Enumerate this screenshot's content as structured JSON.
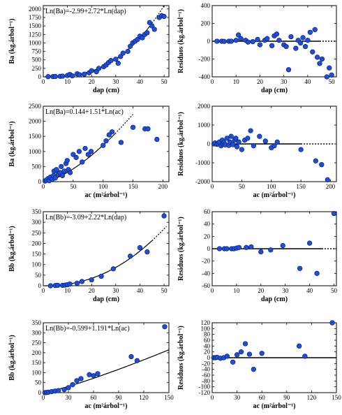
{
  "chart_data": [
    {
      "id": "p1",
      "type": "scatter",
      "equation": "Ln(Ba)=-2.99+2.72*Ln(dap)",
      "ylabel": "Ba (kg.árbol⁻¹)",
      "xlabel": "dap (cm)",
      "xlim": [
        0,
        52
      ],
      "ylim": [
        0,
        2100
      ],
      "xticks": [
        0,
        10,
        20,
        30,
        40,
        50
      ],
      "yticks": [
        0,
        250,
        500,
        750,
        1000,
        1250,
        1500,
        1750,
        2000
      ],
      "points": [
        [
          2,
          5
        ],
        [
          4,
          8
        ],
        [
          5,
          10
        ],
        [
          7,
          15
        ],
        [
          8,
          20
        ],
        [
          10,
          40
        ],
        [
          11,
          70
        ],
        [
          12,
          30
        ],
        [
          14,
          90
        ],
        [
          15,
          60
        ],
        [
          17,
          80
        ],
        [
          19,
          120
        ],
        [
          20,
          180
        ],
        [
          22,
          150
        ],
        [
          23,
          250
        ],
        [
          25,
          300
        ],
        [
          26,
          350
        ],
        [
          27,
          420
        ],
        [
          28,
          480
        ],
        [
          30,
          520
        ],
        [
          31,
          400
        ],
        [
          32,
          600
        ],
        [
          33,
          700
        ],
        [
          35,
          750
        ],
        [
          36,
          900
        ],
        [
          37,
          1000
        ],
        [
          38,
          1050
        ],
        [
          39,
          1100
        ],
        [
          40,
          1200
        ],
        [
          41,
          1150
        ],
        [
          42,
          1250
        ],
        [
          43,
          1300
        ],
        [
          44,
          1600
        ],
        [
          45,
          1500
        ],
        [
          46,
          1400
        ],
        [
          48,
          1750
        ],
        [
          49,
          1800
        ],
        [
          50,
          1780
        ]
      ],
      "curve": {
        "a": -2.99,
        "b": 2.72,
        "solid_max": 45,
        "dotted_max": 52
      }
    },
    {
      "id": "p2",
      "type": "scatter",
      "ylabel": "Residuos (kg.árbol⁻¹)",
      "xlabel": "dap (cm)",
      "xlim": [
        0,
        52
      ],
      "ylim": [
        -400,
        400
      ],
      "xticks": [
        0,
        10,
        20,
        30,
        40,
        50
      ],
      "yticks": [
        -400,
        -200,
        0,
        200,
        400
      ],
      "points": [
        [
          2,
          0
        ],
        [
          4,
          0
        ],
        [
          5,
          -2
        ],
        [
          7,
          0
        ],
        [
          8,
          0
        ],
        [
          10,
          10
        ],
        [
          11,
          70
        ],
        [
          12,
          30
        ],
        [
          14,
          10
        ],
        [
          15,
          -10
        ],
        [
          17,
          -5
        ],
        [
          19,
          20
        ],
        [
          20,
          -40
        ],
        [
          22,
          10
        ],
        [
          23,
          30
        ],
        [
          25,
          -50
        ],
        [
          26,
          60
        ],
        [
          27,
          80
        ],
        [
          28,
          10
        ],
        [
          30,
          -40
        ],
        [
          31,
          -60
        ],
        [
          32,
          -320
        ],
        [
          33,
          50
        ],
        [
          35,
          -80
        ],
        [
          36,
          10
        ],
        [
          37,
          -20
        ],
        [
          38,
          40
        ],
        [
          39,
          -60
        ],
        [
          40,
          10
        ],
        [
          41,
          100
        ],
        [
          42,
          -120
        ],
        [
          43,
          130
        ],
        [
          44,
          -180
        ],
        [
          45,
          -250
        ],
        [
          46,
          -200
        ],
        [
          48,
          -400
        ],
        [
          49,
          -300
        ],
        [
          50,
          -380
        ]
      ],
      "zeroline": {
        "solid_max": 45,
        "dotted_max": 52
      }
    },
    {
      "id": "p3",
      "type": "scatter",
      "equation": "Ln(Ba)=0.144+1.51*Ln(ac)",
      "ylabel": "Ba (kg.árbol⁻¹)",
      "xlabel": "ac (m²árbol⁻¹)",
      "xlim": [
        0,
        210
      ],
      "ylim": [
        0,
        2500
      ],
      "xticks": [
        0,
        50,
        100,
        150,
        200
      ],
      "yticks": [
        0,
        500,
        1000,
        1500,
        2000,
        2500
      ],
      "points": [
        [
          3,
          20
        ],
        [
          5,
          50
        ],
        [
          8,
          100
        ],
        [
          10,
          30
        ],
        [
          12,
          150
        ],
        [
          15,
          80
        ],
        [
          17,
          200
        ],
        [
          18,
          350
        ],
        [
          20,
          120
        ],
        [
          22,
          400
        ],
        [
          25,
          250
        ],
        [
          28,
          300
        ],
        [
          30,
          500
        ],
        [
          32,
          200
        ],
        [
          35,
          350
        ],
        [
          38,
          600
        ],
        [
          40,
          700
        ],
        [
          42,
          400
        ],
        [
          45,
          300
        ],
        [
          50,
          900
        ],
        [
          55,
          800
        ],
        [
          60,
          1000
        ],
        [
          65,
          650
        ],
        [
          70,
          1100
        ],
        [
          75,
          900
        ],
        [
          80,
          1000
        ],
        [
          100,
          1200
        ],
        [
          105,
          1350
        ],
        [
          110,
          1550
        ],
        [
          115,
          1650
        ],
        [
          130,
          1300
        ],
        [
          150,
          1800
        ],
        [
          170,
          1750
        ],
        [
          175,
          1750
        ],
        [
          190,
          1400
        ]
      ],
      "curve": {
        "a": 0.144,
        "b": 1.51,
        "solid_max": 120,
        "dotted_max": 150
      }
    },
    {
      "id": "p4",
      "type": "scatter",
      "ylabel": "Residuos (kg.árbol⁻¹)",
      "xlabel": "ac (m²árbol⁻¹)",
      "xlim": [
        0,
        210
      ],
      "ylim": [
        -2000,
        2000
      ],
      "xticks": [
        0,
        50,
        100,
        150,
        200
      ],
      "yticks": [
        -2000,
        -1000,
        0,
        1000,
        2000
      ],
      "points": [
        [
          3,
          0
        ],
        [
          5,
          50
        ],
        [
          8,
          -20
        ],
        [
          10,
          0
        ],
        [
          12,
          100
        ],
        [
          15,
          -100
        ],
        [
          17,
          200
        ],
        [
          18,
          0
        ],
        [
          20,
          80
        ],
        [
          22,
          -50
        ],
        [
          25,
          300
        ],
        [
          28,
          -80
        ],
        [
          30,
          100
        ],
        [
          32,
          400
        ],
        [
          35,
          -40
        ],
        [
          38,
          200
        ],
        [
          40,
          300
        ],
        [
          42,
          -150
        ],
        [
          45,
          100
        ],
        [
          50,
          -300
        ],
        [
          55,
          200
        ],
        [
          60,
          300
        ],
        [
          65,
          700
        ],
        [
          70,
          -100
        ],
        [
          80,
          400
        ],
        [
          90,
          150
        ],
        [
          100,
          -200
        ],
        [
          105,
          -100
        ],
        [
          110,
          100
        ],
        [
          150,
          -300
        ],
        [
          175,
          -900
        ],
        [
          185,
          -1100
        ],
        [
          195,
          -1900
        ]
      ],
      "zeroline": {
        "solid_max": 150,
        "dotted_max": 205
      }
    },
    {
      "id": "p5",
      "type": "scatter",
      "equation": "Ln(Bb)=-3.09+2.22*Ln(dap)",
      "ylabel": "Bb (kg.árbol⁻¹)",
      "xlabel": "dap (cm)",
      "xlim": [
        0,
        52
      ],
      "ylim": [
        0,
        350
      ],
      "xticks": [
        0,
        10,
        20,
        30,
        40,
        50
      ],
      "yticks": [
        0,
        50,
        100,
        150,
        200,
        250,
        300,
        350
      ],
      "points": [
        [
          3,
          0
        ],
        [
          5,
          1
        ],
        [
          6,
          2
        ],
        [
          8,
          2
        ],
        [
          9,
          3
        ],
        [
          10,
          5
        ],
        [
          11,
          8
        ],
        [
          14,
          12
        ],
        [
          16,
          20
        ],
        [
          20,
          28
        ],
        [
          24,
          45
        ],
        [
          29,
          80
        ],
        [
          36,
          140
        ],
        [
          40,
          180
        ],
        [
          43,
          160
        ],
        [
          50,
          330
        ]
      ],
      "curve": {
        "a": -3.09,
        "b": 2.22,
        "solid_max": 45,
        "dotted_max": 51
      }
    },
    {
      "id": "p6",
      "type": "scatter",
      "ylabel": "Residuos (kg.árbol⁻¹)",
      "xlabel": "dap (cm)",
      "xlim": [
        0,
        51
      ],
      "ylim": [
        -60,
        60
      ],
      "xticks": [
        0,
        10,
        20,
        30,
        40,
        50
      ],
      "yticks": [
        -60,
        -40,
        -20,
        0,
        20,
        40,
        60
      ],
      "points": [
        [
          3,
          0
        ],
        [
          5,
          0
        ],
        [
          6,
          0
        ],
        [
          8,
          0
        ],
        [
          9,
          0
        ],
        [
          10,
          1
        ],
        [
          11,
          2
        ],
        [
          14,
          2
        ],
        [
          16,
          3
        ],
        [
          20,
          -5
        ],
        [
          24,
          -2
        ],
        [
          29,
          5
        ],
        [
          36,
          -32
        ],
        [
          40,
          9
        ],
        [
          43,
          -40
        ],
        [
          50,
          57
        ]
      ],
      "zeroline": {
        "solid_max": 45,
        "dotted_max": 51
      }
    },
    {
      "id": "p7",
      "type": "scatter",
      "equation": "Ln(Bb)=-0.599+1.191*Ln(ac)",
      "ylabel": "Bb (kg.árbol⁻¹)",
      "xlabel": "ac (m²árbol⁻¹)",
      "xlim": [
        0,
        150
      ],
      "ylim": [
        0,
        350
      ],
      "xticks": [
        0,
        30,
        60,
        90,
        120,
        150
      ],
      "yticks": [
        0,
        50,
        100,
        150,
        200,
        250,
        300,
        350
      ],
      "points": [
        [
          2,
          0
        ],
        [
          4,
          1
        ],
        [
          6,
          2
        ],
        [
          10,
          5
        ],
        [
          14,
          8
        ],
        [
          18,
          10
        ],
        [
          25,
          15
        ],
        [
          30,
          25
        ],
        [
          35,
          40
        ],
        [
          40,
          60
        ],
        [
          45,
          70
        ],
        [
          55,
          90
        ],
        [
          60,
          85
        ],
        [
          65,
          95
        ],
        [
          105,
          180
        ],
        [
          112,
          160
        ],
        [
          145,
          330
        ]
      ],
      "curve": {
        "a": -0.599,
        "b": 1.191,
        "solid_max": 150,
        "dotted_max": 150
      }
    },
    {
      "id": "p8",
      "type": "scatter",
      "ylabel": "Residuos (kg.árbol⁻¹)",
      "xlabel": "ac (m²árbol⁻¹)",
      "xlim": [
        0,
        150
      ],
      "ylim": [
        -120,
        120
      ],
      "xticks": [
        0,
        30,
        60,
        90,
        120,
        150
      ],
      "yticks": [
        -120,
        -100,
        -80,
        -60,
        -40,
        -20,
        0,
        20,
        40,
        60,
        80,
        100,
        120
      ],
      "points": [
        [
          2,
          0
        ],
        [
          4,
          0
        ],
        [
          6,
          1
        ],
        [
          10,
          -2
        ],
        [
          14,
          0
        ],
        [
          18,
          5
        ],
        [
          25,
          -15
        ],
        [
          30,
          10
        ],
        [
          35,
          20
        ],
        [
          40,
          48
        ],
        [
          45,
          12
        ],
        [
          50,
          -40
        ],
        [
          60,
          15
        ],
        [
          105,
          40
        ],
        [
          112,
          5
        ],
        [
          145,
          120
        ]
      ],
      "zeroline": {
        "solid_max": 150,
        "dotted_max": 150
      }
    }
  ]
}
